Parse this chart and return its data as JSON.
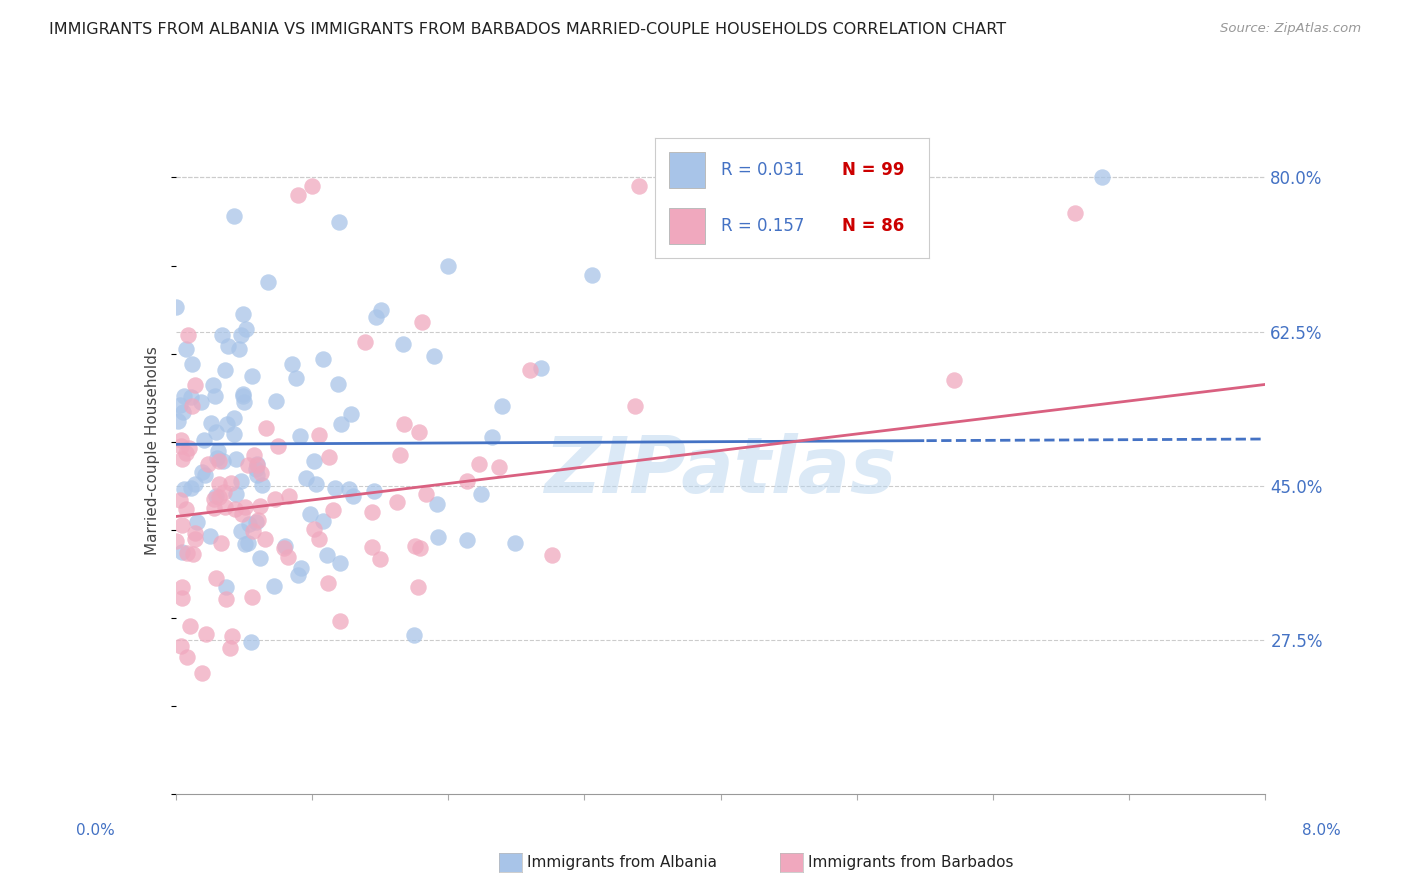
{
  "title": "IMMIGRANTS FROM ALBANIA VS IMMIGRANTS FROM BARBADOS MARRIED-COUPLE HOUSEHOLDS CORRELATION CHART",
  "source": "Source: ZipAtlas.com",
  "ylabel": "Married-couple Households",
  "ytick_labels": [
    "27.5%",
    "45.0%",
    "62.5%",
    "80.0%"
  ],
  "ytick_values": [
    0.275,
    0.45,
    0.625,
    0.8
  ],
  "xmin": 0.0,
  "xmax": 0.08,
  "ymin": 0.1,
  "ymax": 0.88,
  "albania_R": 0.031,
  "albania_N": 99,
  "barbados_R": 0.157,
  "barbados_N": 86,
  "albania_scatter_color": "#a8c4e8",
  "barbados_scatter_color": "#f0a8be",
  "albania_line_color": "#4472c4",
  "barbados_line_color": "#d96080",
  "watermark": "ZIPatlas",
  "title_color": "#222222",
  "legend_R_color": "#4472c4",
  "legend_N_color": "#cc0000",
  "background_color": "#ffffff",
  "grid_color": "#cccccc",
  "grid_style": "--"
}
